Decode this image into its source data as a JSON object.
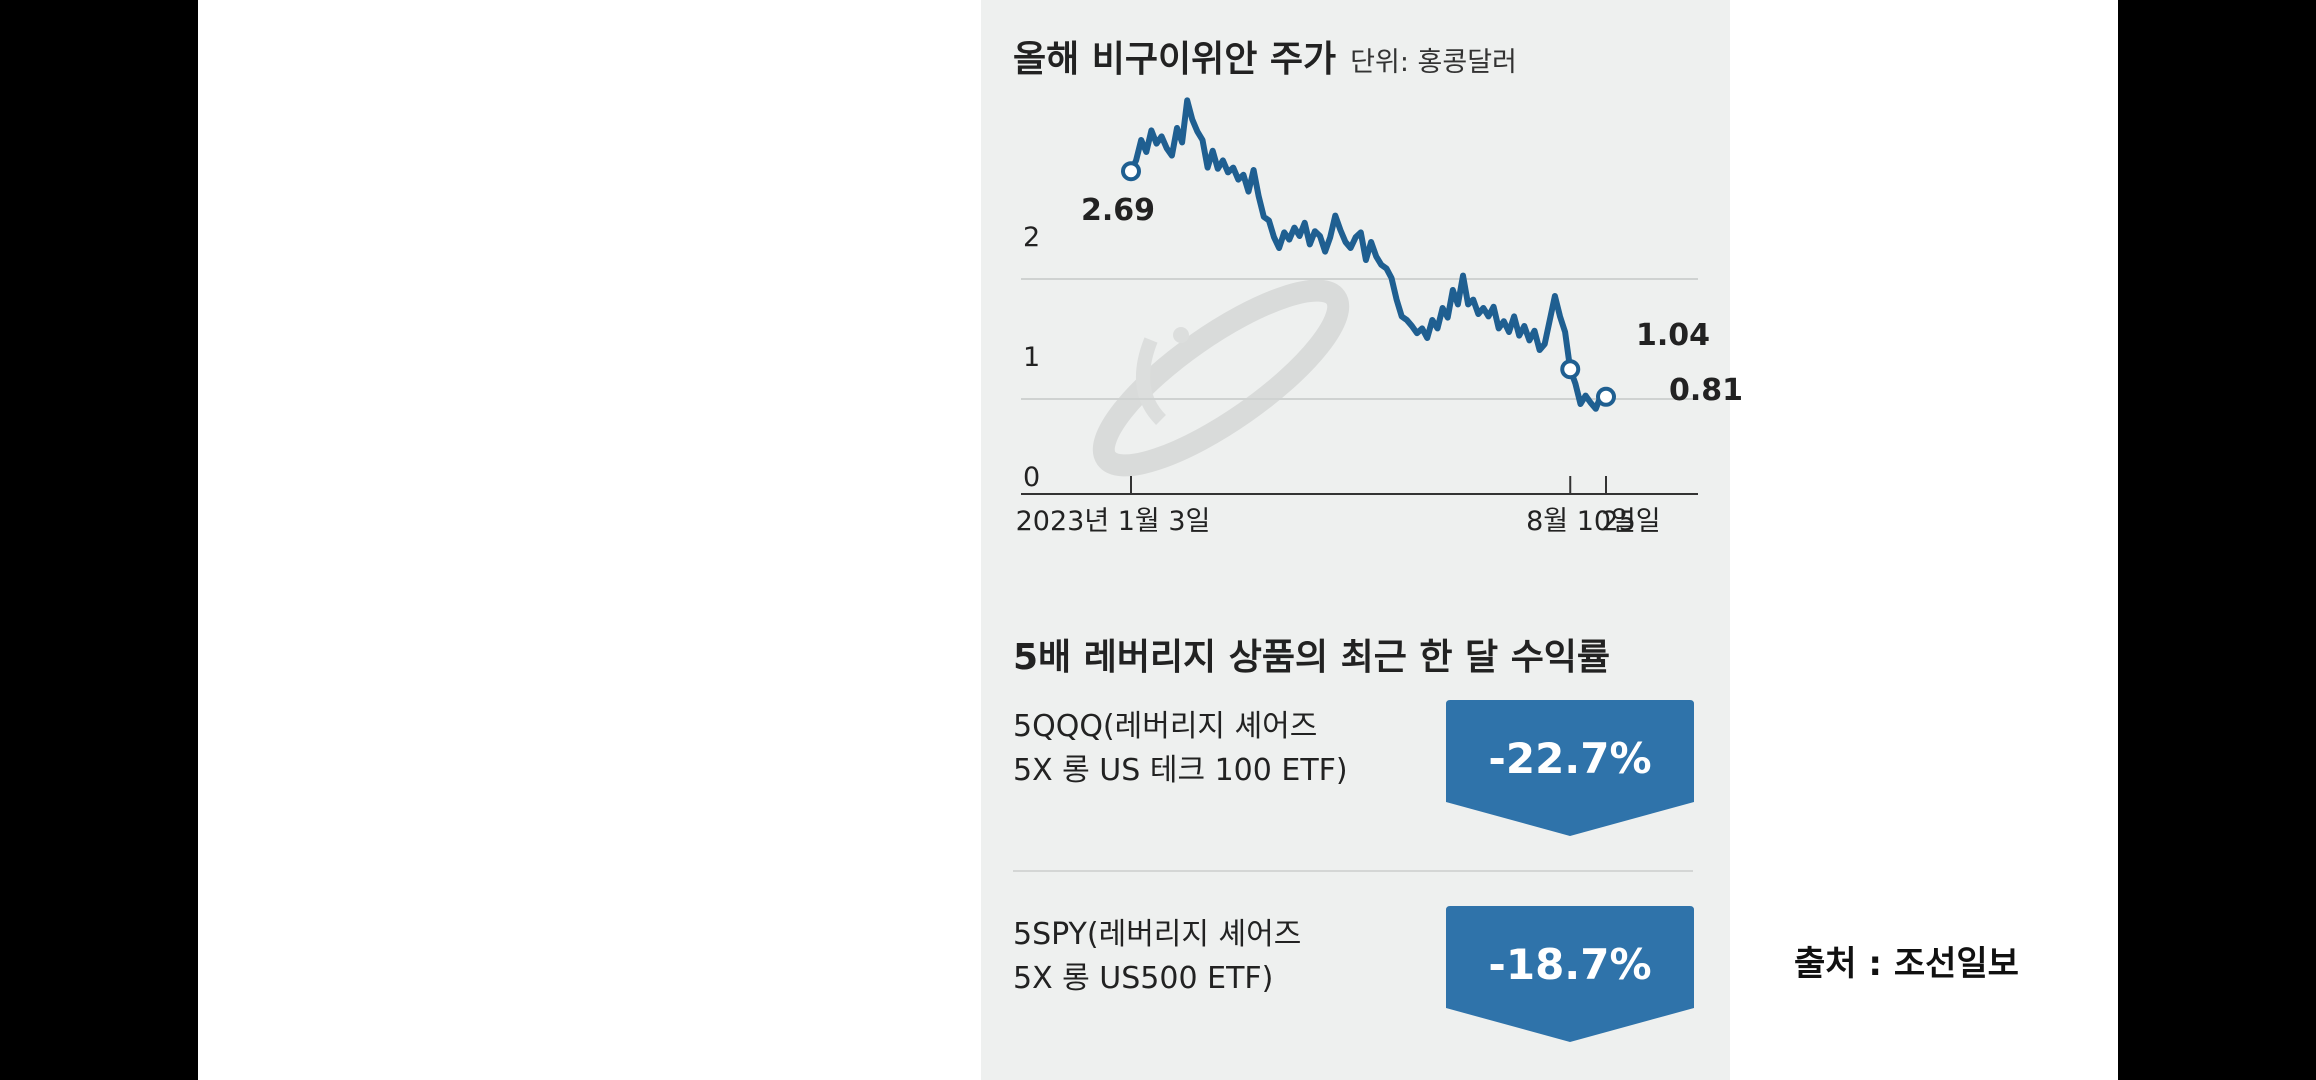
{
  "chart_data": {
    "type": "line",
    "title": "올해 비구이위안 주가",
    "unit": "단위: 홍콩달러",
    "yticks": [
      "0",
      "1",
      "2"
    ],
    "ylim": [
      0,
      3.0
    ],
    "x_tick_labels": [
      "2023년 1월 3일",
      "8월 10일",
      "25일"
    ],
    "annotations": [
      {
        "date": "2023년 1월 3일",
        "value": 2.69,
        "label": "2.69"
      },
      {
        "date": "8월 10일",
        "value": 1.04,
        "label": "1.04"
      },
      {
        "date": "25일",
        "value": 0.81,
        "label": "0.81"
      }
    ],
    "series": [
      {
        "color": "#1f5f91",
        "values": [
          2.69,
          2.78,
          2.95,
          2.85,
          3.03,
          2.92,
          2.98,
          2.88,
          2.82,
          3.05,
          2.93,
          3.28,
          3.12,
          3.02,
          2.95,
          2.72,
          2.86,
          2.71,
          2.78,
          2.68,
          2.72,
          2.62,
          2.66,
          2.52,
          2.7,
          2.48,
          2.31,
          2.28,
          2.14,
          2.05,
          2.18,
          2.12,
          2.22,
          2.15,
          2.26,
          2.08,
          2.19,
          2.15,
          2.02,
          2.14,
          2.32,
          2.2,
          2.1,
          2.05,
          2.14,
          2.18,
          1.95,
          2.1,
          1.98,
          1.91,
          1.88,
          1.8,
          1.62,
          1.48,
          1.45,
          1.4,
          1.34,
          1.38,
          1.3,
          1.45,
          1.38,
          1.55,
          1.47,
          1.7,
          1.58,
          1.82,
          1.58,
          1.62,
          1.5,
          1.55,
          1.48,
          1.56,
          1.38,
          1.44,
          1.35,
          1.48,
          1.32,
          1.4,
          1.28,
          1.36,
          1.2,
          1.25,
          1.45,
          1.65,
          1.48,
          1.35,
          1.04,
          0.92,
          0.75,
          0.82,
          0.76,
          0.71,
          0.82,
          0.81
        ]
      }
    ]
  },
  "leverage": {
    "title": "5배 레버리지 상품의 최근 한 달 수익률",
    "products": [
      {
        "line1": "5QQQ(레버리지 셰어즈",
        "line2": "5X 롱 US 테크 100 ETF)",
        "return": "-22.7%"
      },
      {
        "line1": "5SPY(레버리지 셰어즈",
        "line2": "5X 롱 US500 ETF)",
        "return": "-18.7%"
      }
    ],
    "badge_color": "#2f73aa"
  },
  "source": "출처 : 조선일보"
}
